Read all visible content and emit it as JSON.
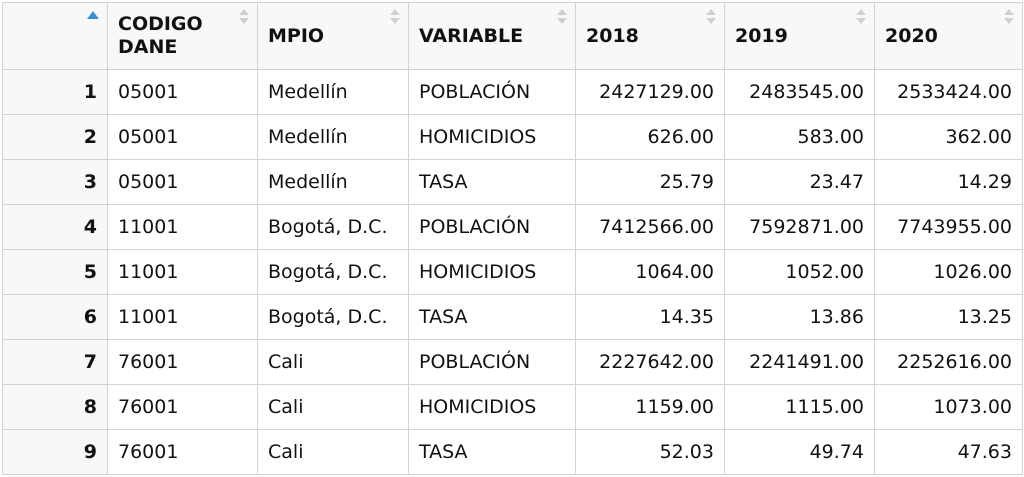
{
  "table": {
    "sort_indicator_color": "#3a8fd6",
    "columns": [
      {
        "key": "idx",
        "label": ""
      },
      {
        "key": "codigo",
        "label": "CODIGO DANE"
      },
      {
        "key": "mpio",
        "label": "MPIO"
      },
      {
        "key": "variable",
        "label": "VARIABLE"
      },
      {
        "key": "y2018",
        "label": "2018"
      },
      {
        "key": "y2019",
        "label": "2019"
      },
      {
        "key": "y2020",
        "label": "2020"
      }
    ],
    "rows": [
      {
        "idx": "1",
        "codigo": "05001",
        "mpio": "Medellín",
        "variable": "POBLACIÓN",
        "y2018": "2427129.00",
        "y2019": "2483545.00",
        "y2020": "2533424.00"
      },
      {
        "idx": "2",
        "codigo": "05001",
        "mpio": "Medellín",
        "variable": "HOMICIDIOS",
        "y2018": "626.00",
        "y2019": "583.00",
        "y2020": "362.00"
      },
      {
        "idx": "3",
        "codigo": "05001",
        "mpio": "Medellín",
        "variable": "TASA",
        "y2018": "25.79",
        "y2019": "23.47",
        "y2020": "14.29"
      },
      {
        "idx": "4",
        "codigo": "11001",
        "mpio": "Bogotá, D.C.",
        "variable": "POBLACIÓN",
        "y2018": "7412566.00",
        "y2019": "7592871.00",
        "y2020": "7743955.00"
      },
      {
        "idx": "5",
        "codigo": "11001",
        "mpio": "Bogotá, D.C.",
        "variable": "HOMICIDIOS",
        "y2018": "1064.00",
        "y2019": "1052.00",
        "y2020": "1026.00"
      },
      {
        "idx": "6",
        "codigo": "11001",
        "mpio": "Bogotá, D.C.",
        "variable": "TASA",
        "y2018": "14.35",
        "y2019": "13.86",
        "y2020": "13.25"
      },
      {
        "idx": "7",
        "codigo": "76001",
        "mpio": "Cali",
        "variable": "POBLACIÓN",
        "y2018": "2227642.00",
        "y2019": "2241491.00",
        "y2020": "2252616.00"
      },
      {
        "idx": "8",
        "codigo": "76001",
        "mpio": "Cali",
        "variable": "HOMICIDIOS",
        "y2018": "1159.00",
        "y2019": "1115.00",
        "y2020": "1073.00"
      },
      {
        "idx": "9",
        "codigo": "76001",
        "mpio": "Cali",
        "variable": "TASA",
        "y2018": "52.03",
        "y2019": "49.74",
        "y2020": "47.63"
      }
    ]
  }
}
